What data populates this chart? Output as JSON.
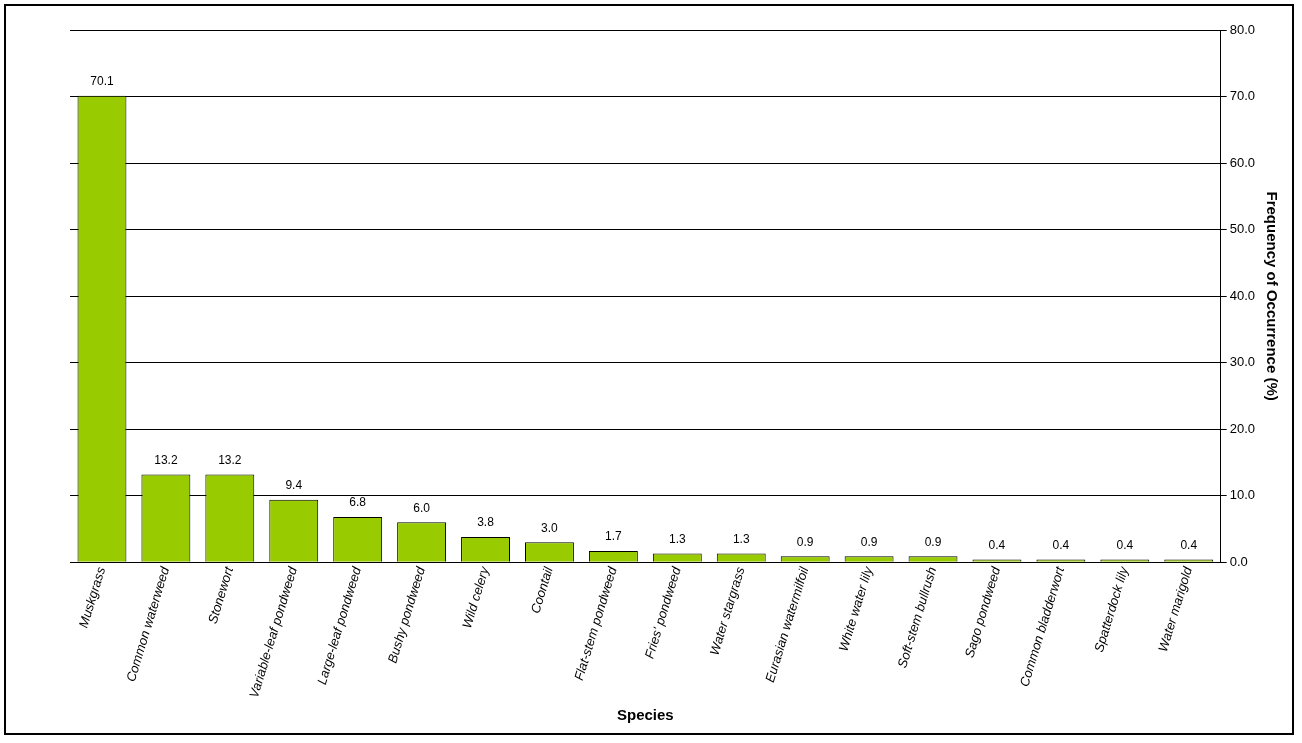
{
  "chart_data": {
    "type": "bar",
    "xlabel": "Species",
    "ylabel": "Frequency of Occurrence (%)",
    "categories": [
      "Muskgrass",
      "Common waterweed",
      "Stonewort",
      "Variable-leaf pondweed",
      "Large-leaf pondweed",
      "Bushy pondweed",
      "Wild celery",
      "Coontail",
      "Flat-stem pondweed",
      "Fries' pondweed",
      "Water stargrass",
      "Eurasian watermilfoil",
      "White water lily",
      "Soft-stem bullrush",
      "Sago pondweed",
      "Common bladderwort",
      "Spatterdock lily",
      "Water marigold"
    ],
    "values": [
      70.1,
      13.2,
      13.2,
      9.4,
      6.8,
      6.0,
      3.8,
      3.0,
      1.7,
      1.3,
      1.3,
      0.9,
      0.9,
      0.9,
      0.4,
      0.4,
      0.4,
      0.4
    ],
    "value_labels": [
      "70.1",
      "13.2",
      "13.2",
      "9.4",
      "6.8",
      "6.0",
      "3.8",
      "3.0",
      "1.7",
      "1.3",
      "1.3",
      "0.9",
      "0.9",
      "0.9",
      "0.4",
      "0.4",
      "0.4",
      "0.4"
    ],
    "color": "#99cc00",
    "ylim": [
      0,
      80
    ],
    "yticks": [
      {
        "value": 0,
        "label": "0.0"
      },
      {
        "value": 10,
        "label": "10.0"
      },
      {
        "value": 20,
        "label": "20.0"
      },
      {
        "value": 30,
        "label": "30.0"
      },
      {
        "value": 40,
        "label": "40.0"
      },
      {
        "value": 50,
        "label": "50.0"
      },
      {
        "value": 60,
        "label": "60.0"
      },
      {
        "value": 70,
        "label": "70.0"
      },
      {
        "value": 80,
        "label": "80.0"
      }
    ],
    "grid": "y",
    "legend": false
  }
}
